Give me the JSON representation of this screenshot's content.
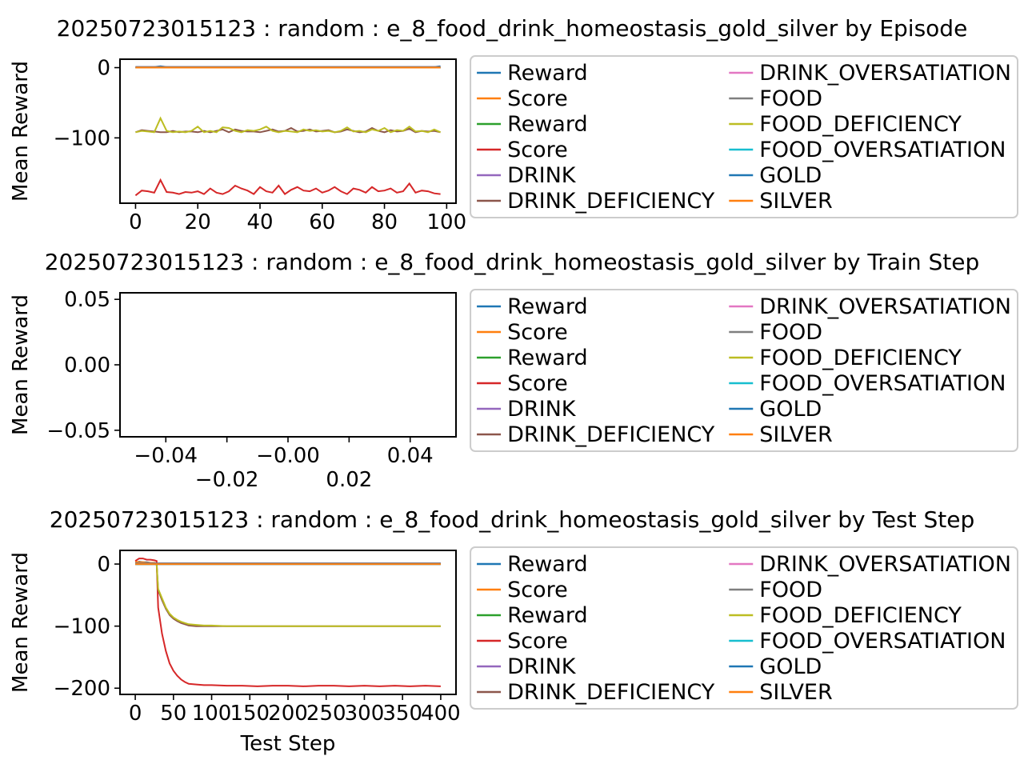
{
  "chart_data": [
    {
      "type": "line",
      "title": "20250723015123 : random : e_8_food_drink_homeostasis_gold_silver by Episode",
      "xlabel": "",
      "ylabel": "Mean Reward",
      "xlim": [
        -5,
        103
      ],
      "ylim": [
        -193,
        12
      ],
      "xticks": [
        0,
        20,
        40,
        60,
        80,
        100
      ],
      "yticks": [
        0,
        -100
      ],
      "ytick_labels": [
        "0",
        "−100"
      ],
      "grid": false,
      "legend_placement": "upper-right",
      "x": [
        0,
        2,
        4,
        6,
        8,
        10,
        12,
        14,
        16,
        18,
        20,
        22,
        24,
        26,
        28,
        30,
        32,
        34,
        36,
        38,
        40,
        42,
        44,
        46,
        48,
        50,
        52,
        54,
        56,
        58,
        60,
        62,
        64,
        66,
        68,
        70,
        72,
        74,
        76,
        78,
        80,
        82,
        84,
        86,
        88,
        90,
        92,
        94,
        96,
        98
      ],
      "series": [
        {
          "name": "Reward",
          "color": "#1f77b4",
          "values": [
            1,
            1,
            1,
            1,
            2,
            1,
            1,
            1,
            1,
            1,
            1,
            1,
            1,
            1,
            1,
            1,
            1,
            1,
            1,
            1,
            1,
            1,
            1,
            1,
            1,
            1,
            1,
            1,
            1,
            1,
            1,
            1,
            1,
            1,
            1,
            1,
            1,
            1,
            1,
            1,
            1,
            1,
            1,
            1,
            1,
            1,
            1,
            1,
            1,
            2
          ]
        },
        {
          "name": "Score",
          "color": "#ff7f0e",
          "constant": 0
        },
        {
          "name": "Reward",
          "color": "#2ca02c",
          "constant": 0
        },
        {
          "name": "Score",
          "color": "#d62728",
          "values": [
            -182,
            -175,
            -176,
            -178,
            -160,
            -177,
            -178,
            -180,
            -177,
            -178,
            -176,
            -180,
            -172,
            -178,
            -180,
            -176,
            -168,
            -172,
            -175,
            -180,
            -170,
            -176,
            -178,
            -168,
            -180,
            -174,
            -170,
            -175,
            -176,
            -172,
            -178,
            -175,
            -170,
            -176,
            -180,
            -172,
            -174,
            -178,
            -170,
            -176,
            -175,
            -172,
            -178,
            -176,
            -165,
            -178,
            -175,
            -176,
            -179,
            -180
          ]
        },
        {
          "name": "DRINK",
          "color": "#9467bd",
          "constant": 1
        },
        {
          "name": "DRINK_DEFICIENCY",
          "color": "#8c564b",
          "values": [
            -92,
            -89,
            -90,
            -91,
            -92,
            -92,
            -90,
            -92,
            -91,
            -91,
            -92,
            -90,
            -92,
            -90,
            -88,
            -92,
            -88,
            -90,
            -91,
            -91,
            -92,
            -90,
            -88,
            -91,
            -90,
            -86,
            -91,
            -90,
            -88,
            -91,
            -90,
            -89,
            -92,
            -91,
            -88,
            -90,
            -92,
            -91,
            -86,
            -90,
            -92,
            -89,
            -91,
            -90,
            -87,
            -92,
            -90,
            -91,
            -90,
            -92
          ]
        },
        {
          "name": "DRINK_OVERSATIATION",
          "color": "#e377c2",
          "constant": 0
        },
        {
          "name": "FOOD",
          "color": "#7f7f7f",
          "constant": 1
        },
        {
          "name": "FOOD_DEFICIENCY",
          "color": "#bcbd22",
          "values": [
            -92,
            -90,
            -91,
            -92,
            -72,
            -90,
            -92,
            -91,
            -92,
            -90,
            -84,
            -92,
            -90,
            -92,
            -85,
            -86,
            -90,
            -92,
            -89,
            -90,
            -88,
            -84,
            -90,
            -92,
            -90,
            -91,
            -92,
            -88,
            -90,
            -89,
            -91,
            -90,
            -92,
            -90,
            -85,
            -91,
            -90,
            -92,
            -88,
            -90,
            -86,
            -92,
            -89,
            -90,
            -84,
            -91,
            -90,
            -92,
            -88,
            -92
          ]
        },
        {
          "name": "FOOD_OVERSATIATION",
          "color": "#17becf",
          "constant": 0
        },
        {
          "name": "GOLD",
          "color": "#1f77b4",
          "constant": 0
        },
        {
          "name": "SILVER",
          "color": "#ff7f0e",
          "constant": 0
        }
      ]
    },
    {
      "type": "line",
      "title": "20250723015123 : random : e_8_food_drink_homeostasis_gold_silver by Train Step",
      "xlabel": "",
      "ylabel": "Mean Reward",
      "xlim": [
        -0.055,
        0.055
      ],
      "ylim": [
        -0.055,
        0.055
      ],
      "xticks": [
        -0.04,
        -0.02,
        0.0,
        0.02,
        0.04
      ],
      "xtick_labels": [
        "−0.04",
        "−0.02",
        "−0.00",
        "0.02",
        "0.04"
      ],
      "yticks": [
        0.05,
        0.0,
        -0.05
      ],
      "ytick_labels": [
        "0.05",
        "0.00",
        "−0.05"
      ],
      "grid": false,
      "legend_placement": "upper-right",
      "series": [
        {
          "name": "Reward",
          "color": "#1f77b4"
        },
        {
          "name": "Score",
          "color": "#ff7f0e"
        },
        {
          "name": "Reward",
          "color": "#2ca02c"
        },
        {
          "name": "Score",
          "color": "#d62728"
        },
        {
          "name": "DRINK",
          "color": "#9467bd"
        },
        {
          "name": "DRINK_DEFICIENCY",
          "color": "#8c564b"
        },
        {
          "name": "DRINK_OVERSATIATION",
          "color": "#e377c2"
        },
        {
          "name": "FOOD",
          "color": "#7f7f7f"
        },
        {
          "name": "FOOD_DEFICIENCY",
          "color": "#bcbd22"
        },
        {
          "name": "FOOD_OVERSATIATION",
          "color": "#17becf"
        },
        {
          "name": "GOLD",
          "color": "#1f77b4"
        },
        {
          "name": "SILVER",
          "color": "#ff7f0e"
        }
      ]
    },
    {
      "type": "line",
      "title": "20250723015123 : random : e_8_food_drink_homeostasis_gold_silver by Test Step",
      "xlabel": "Test Step",
      "ylabel": "Mean Reward",
      "xlim": [
        -20,
        420
      ],
      "ylim": [
        -210,
        22
      ],
      "xticks": [
        0,
        50,
        100,
        150,
        200,
        250,
        300,
        350,
        400
      ],
      "yticks": [
        0,
        -100,
        -200
      ],
      "ytick_labels": [
        "0",
        "−100",
        "−200"
      ],
      "grid": false,
      "legend_placement": "upper-right",
      "x": [
        0,
        5,
        10,
        15,
        20,
        25,
        28,
        30,
        35,
        40,
        45,
        50,
        55,
        60,
        65,
        70,
        80,
        90,
        100,
        120,
        140,
        160,
        180,
        200,
        220,
        240,
        260,
        280,
        300,
        320,
        340,
        360,
        380,
        400
      ],
      "series": [
        {
          "name": "Reward",
          "color": "#1f77b4",
          "values": [
            2,
            4,
            3,
            3,
            2,
            2,
            1,
            1,
            1,
            1,
            1,
            1,
            1,
            1,
            1,
            1,
            1,
            1,
            1,
            1,
            1,
            1,
            1,
            1,
            1,
            1,
            1,
            1,
            1,
            1,
            1,
            1,
            1,
            1
          ]
        },
        {
          "name": "Score",
          "color": "#ff7f0e",
          "values": [
            4,
            3,
            3,
            2,
            2,
            2,
            1,
            0,
            0,
            0,
            0,
            0,
            0,
            0,
            0,
            0,
            0,
            0,
            0,
            0,
            0,
            0,
            0,
            0,
            0,
            0,
            0,
            0,
            0,
            0,
            0,
            0,
            0,
            0
          ]
        },
        {
          "name": "Reward",
          "color": "#2ca02c",
          "constant": 0
        },
        {
          "name": "Score",
          "color": "#d62728",
          "values": [
            5,
            9,
            9,
            7,
            7,
            6,
            5,
            -70,
            -112,
            -140,
            -160,
            -172,
            -180,
            -186,
            -190,
            -193,
            -194,
            -195,
            -195,
            -196,
            -196,
            -197,
            -196,
            -196,
            -197,
            -196,
            -196,
            -197,
            -196,
            -197,
            -196,
            -197,
            -196,
            -197
          ]
        },
        {
          "name": "DRINK",
          "color": "#9467bd",
          "constant": 1
        },
        {
          "name": "DRINK_DEFICIENCY",
          "color": "#8c564b",
          "values": [
            0,
            0,
            0,
            0,
            0,
            0,
            0,
            -42,
            -58,
            -72,
            -82,
            -88,
            -92,
            -95,
            -97,
            -99,
            -100,
            -100,
            -100,
            -100,
            -100,
            -100,
            -100,
            -100,
            -100,
            -100,
            -100,
            -100,
            -100,
            -100,
            -100,
            -100,
            -100,
            -100
          ]
        },
        {
          "name": "DRINK_OVERSATIATION",
          "color": "#e377c2",
          "constant": 0
        },
        {
          "name": "FOOD",
          "color": "#7f7f7f",
          "constant": 1
        },
        {
          "name": "FOOD_DEFICIENCY",
          "color": "#bcbd22",
          "values": [
            0,
            0,
            0,
            0,
            0,
            0,
            0,
            -40,
            -55,
            -70,
            -80,
            -86,
            -90,
            -93,
            -95,
            -97,
            -98,
            -99,
            -99,
            -100,
            -100,
            -100,
            -100,
            -100,
            -100,
            -100,
            -100,
            -100,
            -100,
            -100,
            -100,
            -100,
            -100,
            -100
          ]
        },
        {
          "name": "FOOD_OVERSATIATION",
          "color": "#17becf",
          "constant": 0
        },
        {
          "name": "GOLD",
          "color": "#1f77b4",
          "constant": 0
        },
        {
          "name": "SILVER",
          "color": "#ff7f0e",
          "constant": 0
        }
      ]
    }
  ]
}
